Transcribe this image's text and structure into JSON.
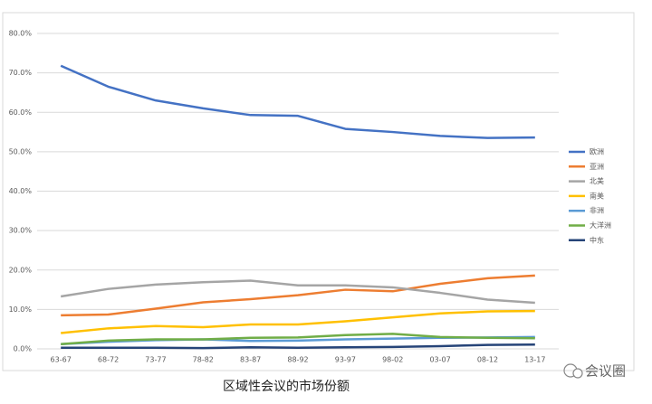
{
  "chart_data": {
    "type": "line",
    "title": "区域性会议的市场份额",
    "watermark": "会议圈",
    "categories": [
      "63-67",
      "68-72",
      "73-77",
      "78-82",
      "83-87",
      "88-92",
      "93-97",
      "98-02",
      "03-07",
      "08-12",
      "13-17"
    ],
    "series": [
      {
        "name": "欧洲",
        "color": "#4472c4",
        "values": [
          71.8,
          66.5,
          63,
          61,
          59.3,
          59.1,
          55.8,
          55,
          54,
          53.5,
          53.6
        ]
      },
      {
        "name": "亚洲",
        "color": "#ed7d31",
        "values": [
          8.5,
          8.7,
          10.2,
          11.8,
          12.6,
          13.6,
          15.0,
          14.6,
          16.5,
          17.9,
          18.6
        ]
      },
      {
        "name": "北美",
        "color": "#a5a5a5",
        "values": [
          13.3,
          15.2,
          16.3,
          16.9,
          17.3,
          16.1,
          16.1,
          15.6,
          14.2,
          12.5,
          11.7
        ]
      },
      {
        "name": "南美",
        "color": "#ffc000",
        "values": [
          4.0,
          5.2,
          5.8,
          5.5,
          6.2,
          6.2,
          7.0,
          8.0,
          9.0,
          9.5,
          9.6
        ]
      },
      {
        "name": "非洲",
        "color": "#5b9bd5",
        "values": [
          1.2,
          1.8,
          2.2,
          2.4,
          2.0,
          2.1,
          2.4,
          2.6,
          2.8,
          2.9,
          3.0
        ]
      },
      {
        "name": "大洋洲",
        "color": "#70ad47",
        "values": [
          1.2,
          2.1,
          2.4,
          2.4,
          2.8,
          2.9,
          3.5,
          3.8,
          3.0,
          2.8,
          2.7
        ]
      },
      {
        "name": "中东",
        "color": "#264478",
        "values": [
          0.3,
          0.3,
          0.3,
          0.2,
          0.4,
          0.3,
          0.4,
          0.5,
          0.7,
          1.0,
          1.1
        ]
      }
    ],
    "ylim": [
      0,
      80
    ],
    "yticks": [
      {
        "value": 0,
        "label": "0.0%"
      },
      {
        "value": 10,
        "label": "10.0%"
      },
      {
        "value": 20,
        "label": "20.0%"
      },
      {
        "value": 30,
        "label": "30.0%"
      },
      {
        "value": 40,
        "label": "40.0%"
      },
      {
        "value": 50,
        "label": "50.0%"
      },
      {
        "value": 60,
        "label": "60.0%"
      },
      {
        "value": 70,
        "label": "70.0%"
      },
      {
        "value": 80,
        "label": "80.0%"
      }
    ],
    "grid": true,
    "legend": "right"
  }
}
